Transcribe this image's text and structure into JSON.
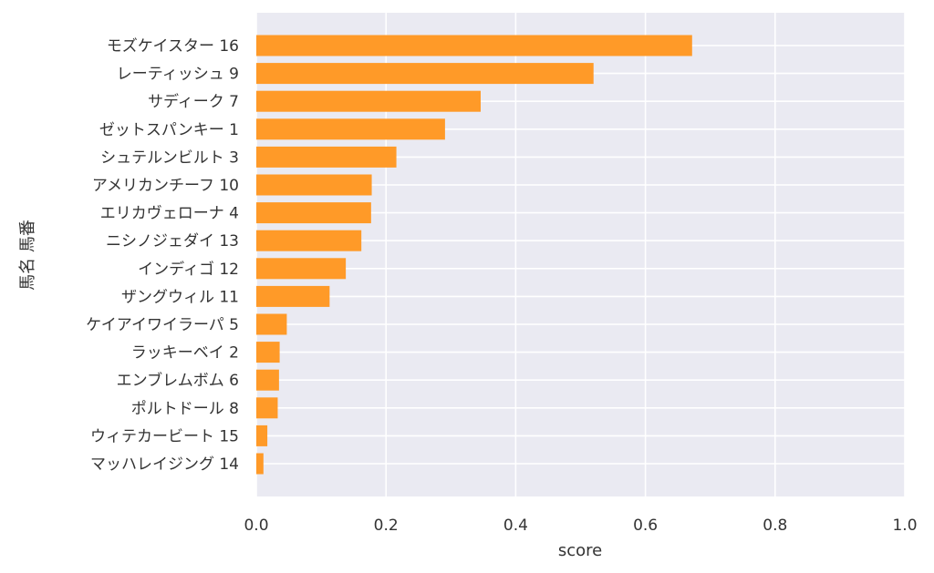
{
  "chart_data": {
    "type": "bar",
    "orientation": "horizontal",
    "categories": [
      "モズケイスター 16",
      "レーティッシュ 9",
      "サディーク 7",
      "ゼットスパンキー 1",
      "シュテルンビルト 3",
      "アメリカンチーフ 10",
      "エリカヴェローナ 4",
      "ニシノジェダイ 13",
      "インディゴ 12",
      "ザングウィル 11",
      "ケイアイワイラーパ 5",
      "ラッキーベイ 2",
      "エンブレムボム 6",
      "ポルトドール 8",
      "ウィテカービート 15",
      "マッハレイジング 14"
    ],
    "values": [
      0.672,
      0.52,
      0.346,
      0.291,
      0.216,
      0.178,
      0.177,
      0.162,
      0.138,
      0.113,
      0.047,
      0.036,
      0.035,
      0.033,
      0.017,
      0.011
    ],
    "xlabel": "score",
    "ylabel": "馬名 馬番",
    "xlim": [
      0,
      1.0
    ],
    "xticks": [
      "0.0",
      "0.2",
      "0.4",
      "0.6",
      "0.8",
      "1.0"
    ],
    "xtick_values": [
      0,
      0.2,
      0.4,
      0.6,
      0.8,
      1.0
    ],
    "grid": true,
    "bar_color": "#ff9a28",
    "background_color": "#eaeaf2"
  }
}
